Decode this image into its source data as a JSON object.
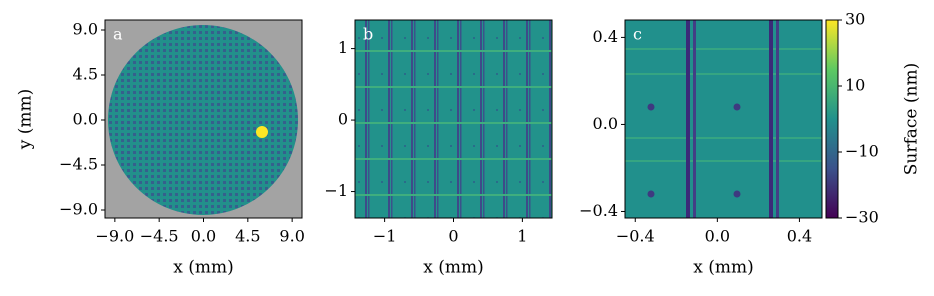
{
  "chart_data": [
    {
      "type": "heatmap",
      "panel_label": "a",
      "xlabel": "x (mm)",
      "ylabel": "y (mm)",
      "xlim": [
        -10,
        10
      ],
      "ylim": [
        -9.8,
        10
      ],
      "xticks": [
        {
          "value": -9,
          "label": "−9.0"
        },
        {
          "value": -4.5,
          "label": "−4.5"
        },
        {
          "value": 0,
          "label": "0.0"
        },
        4.5,
        {
          "value": 9,
          "label": "9.0"
        }
      ],
      "yticks": [
        {
          "value": 9,
          "label": "9.0"
        },
        4.5,
        {
          "value": 0,
          "label": "0.0"
        },
        {
          "value": -4.5,
          "label": "−4.5"
        },
        {
          "value": -9,
          "label": "−9.0"
        }
      ]
    },
    {
      "type": "heatmap",
      "panel_label": "b",
      "xlabel": "x (mm)",
      "xlim": [
        -1.43,
        1.43
      ],
      "ylim": [
        -1.37,
        1.4
      ],
      "xticks": [
        {
          "value": -1,
          "label": "−1"
        },
        0,
        1
      ],
      "yticks": [
        1,
        0,
        {
          "value": -1,
          "label": "−1"
        }
      ]
    },
    {
      "type": "heatmap",
      "panel_label": "c",
      "xlabel": "x (mm)",
      "xlim": [
        -0.45,
        0.51
      ],
      "ylim": [
        -0.43,
        0.48
      ],
      "xticks": [
        {
          "value": -0.4,
          "label": "−0.4"
        },
        {
          "value": 0,
          "label": "0.0"
        },
        0.4
      ],
      "yticks": [
        0.4,
        {
          "value": 0,
          "label": "0.0"
        },
        {
          "value": -0.4,
          "label": "−0.4"
        }
      ],
      "colorbar": {
        "label": "Surface (nm)",
        "lim": [
          -30,
          30
        ],
        "ticks": [
          30,
          10,
          {
            "value": -10,
            "label": "−10"
          },
          {
            "value": -30,
            "label": "−30"
          }
        ]
      }
    }
  ]
}
